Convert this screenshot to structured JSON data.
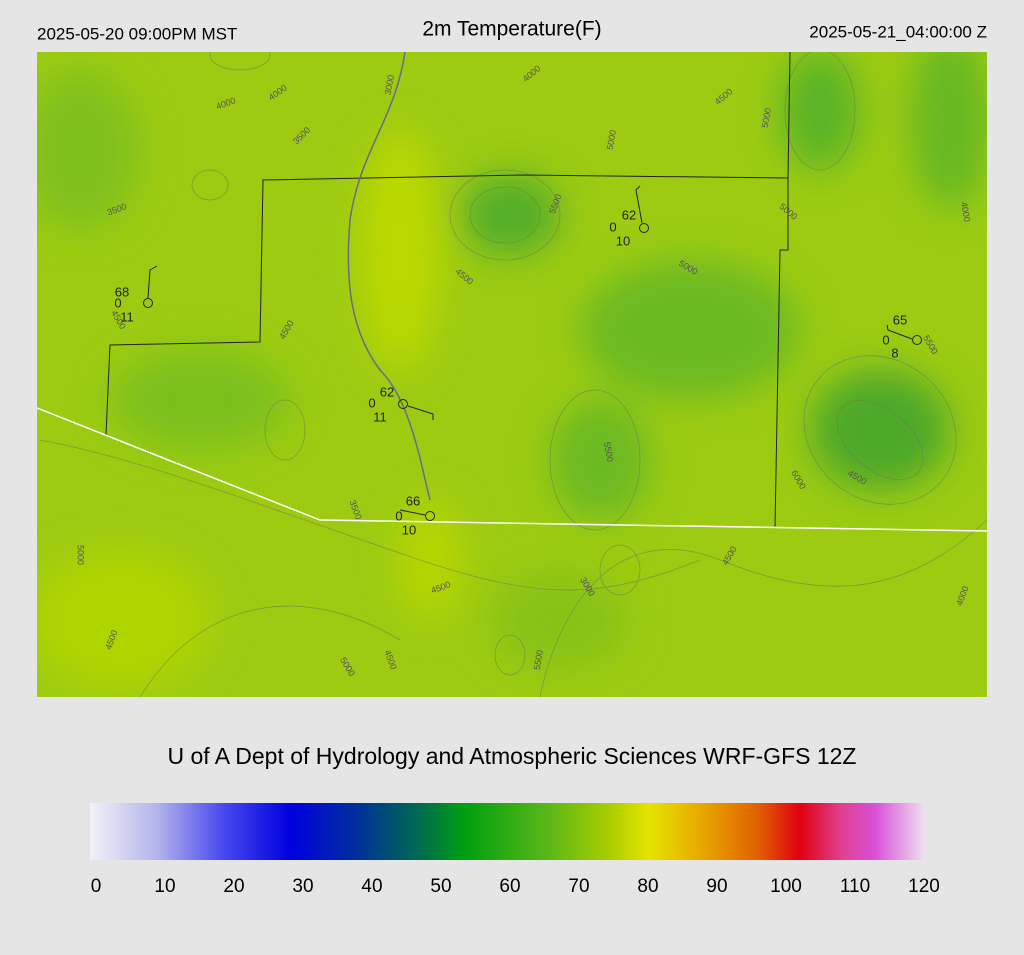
{
  "header": {
    "left": "2025-05-20 09:00PM MST",
    "title": "2m Temperature(F)",
    "right": "2025-05-21_04:00:00 Z"
  },
  "stations": [
    {
      "temperature": "68",
      "left": "0",
      "below": "11"
    },
    {
      "temperature": "62",
      "left": "0",
      "below": "10"
    },
    {
      "temperature": "65",
      "left": "0",
      "below": "8"
    },
    {
      "temperature": "62",
      "left": "0",
      "below": "11"
    },
    {
      "temperature": "66",
      "left": "0",
      "below": "10"
    }
  ],
  "contour_labels": [
    "4000",
    "4000",
    "3000",
    "3500",
    "4000",
    "4500",
    "5000",
    "5000",
    "3500",
    "5500",
    "5000",
    "4000",
    "4500",
    "5000",
    "4500",
    "4500",
    "5500",
    "5500",
    "6000",
    "4500",
    "3500",
    "5000",
    "4500",
    "4500",
    "3000",
    "4500",
    "4000",
    "4500",
    "5000",
    "5500"
  ],
  "credit": "U of A Dept of Hydrology and Atmospheric Sciences WRF-GFS 12Z",
  "colorbar": {
    "lim": [
      0,
      120
    ],
    "ticks": [
      0,
      10,
      20,
      30,
      40,
      50,
      60,
      70,
      80,
      90,
      100,
      110,
      120
    ]
  }
}
